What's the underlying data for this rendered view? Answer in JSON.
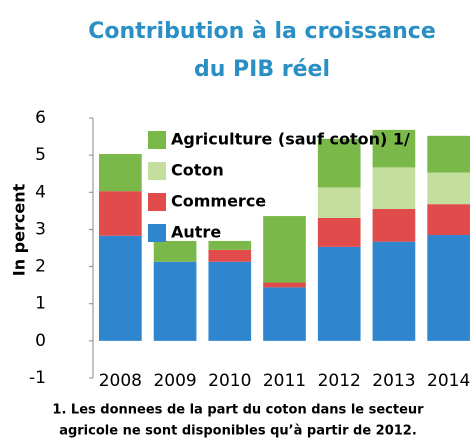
{
  "chart_data": {
    "type": "stacked_bar",
    "title": [
      "Contribution à la croissance",
      "du PIB réel"
    ],
    "ylabel": "In percent",
    "categories": [
      "2008",
      "2009",
      "2010",
      "2011",
      "2012",
      "2013",
      "2014"
    ],
    "series": [
      {
        "name": "Autre",
        "color": "#2f86cf",
        "values": [
          2.83,
          2.13,
          2.13,
          1.44,
          2.53,
          2.67,
          2.85
        ]
      },
      {
        "name": "Commerce",
        "color": "#e14b4b",
        "values": [
          1.2,
          0,
          0.32,
          0.13,
          0.78,
          0.88,
          0.83
        ]
      },
      {
        "name": "Coton",
        "color": "#c4de9e",
        "values": [
          null,
          null,
          null,
          null,
          0.82,
          1.12,
          0.85
        ]
      },
      {
        "name": "Agriculture (sauf coton) 1/",
        "color": "#7bb84a",
        "values": [
          1.0,
          0.56,
          0.24,
          1.79,
          1.31,
          1.01,
          0.99
        ]
      }
    ],
    "ylim": [
      -1,
      6
    ],
    "yticks": [
      -1,
      0,
      1,
      2,
      3,
      4,
      5,
      6
    ],
    "note": [
      "1. Les donnees de la part du coton dans le secteur",
      "agricole ne sont disponibles qu’à partir de 2012."
    ]
  }
}
